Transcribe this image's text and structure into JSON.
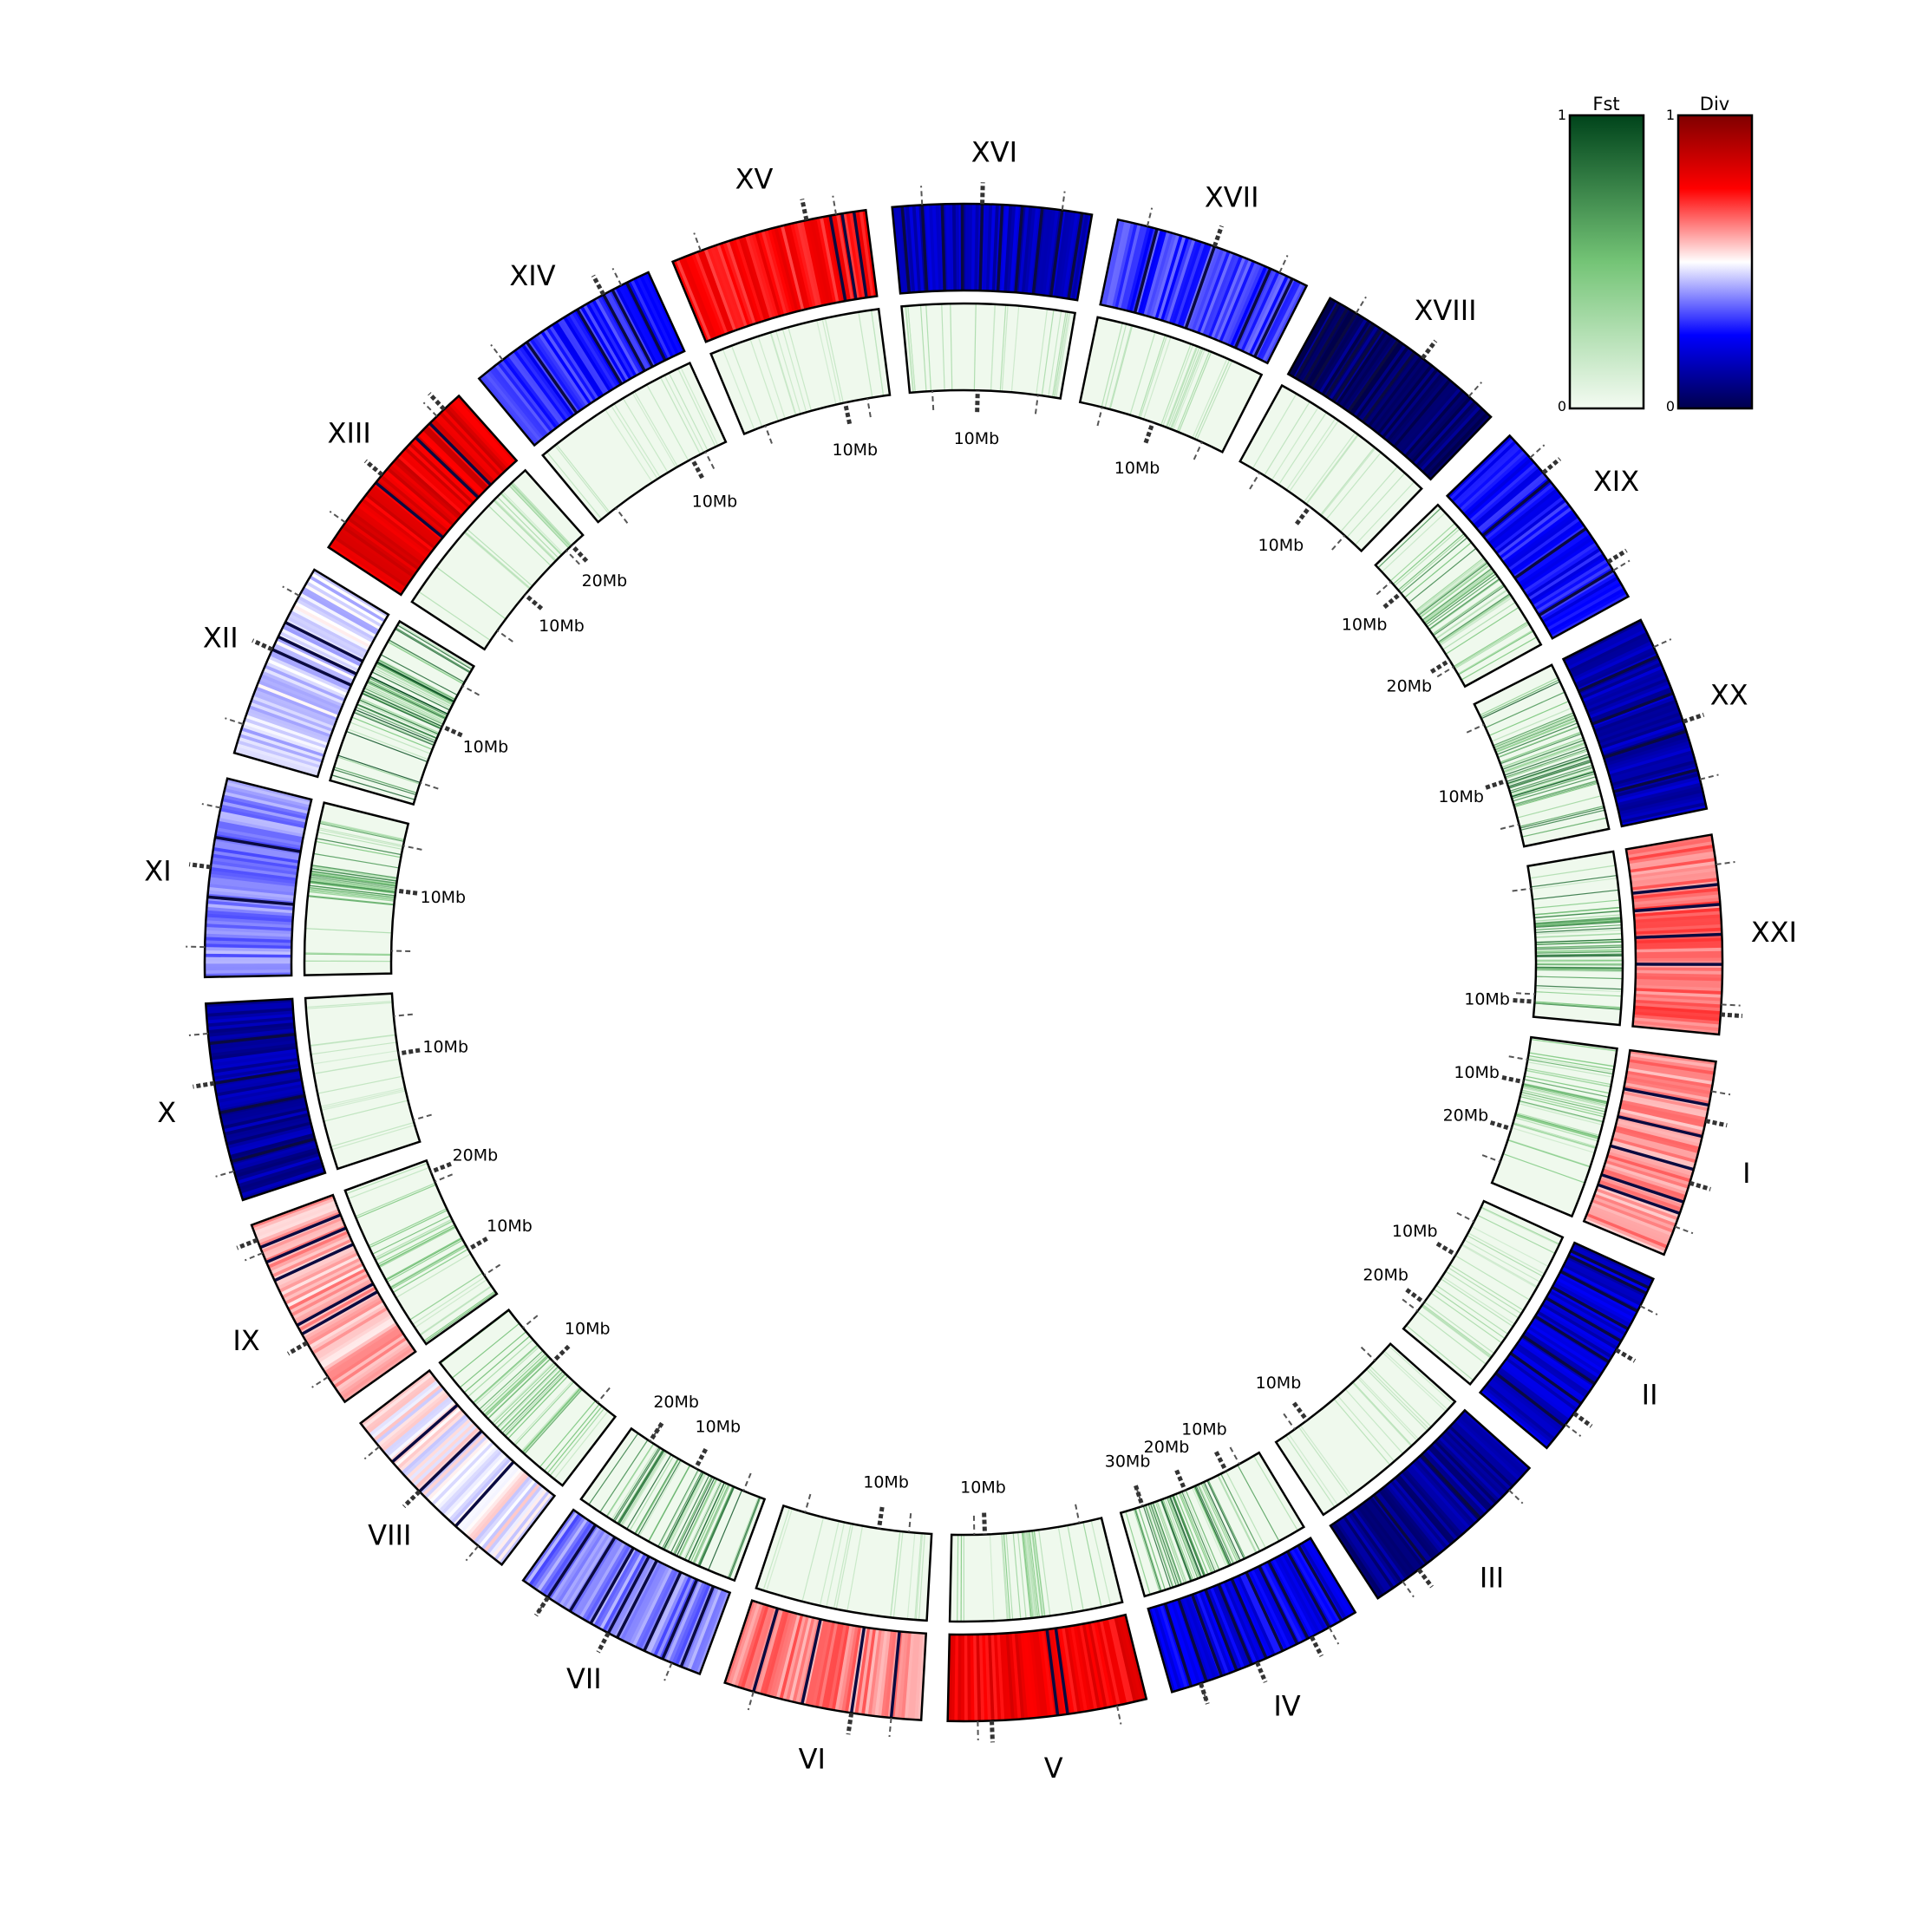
{
  "chart_data": {
    "type": "circos",
    "tracks": [
      {
        "name": "Div",
        "position": "outer",
        "colormap": "seismic",
        "range": [
          0,
          1
        ]
      },
      {
        "name": "Fst",
        "position": "inner",
        "colormap": "Greens",
        "range": [
          0,
          1
        ]
      }
    ],
    "legend": {
      "placement": "top-right",
      "colorbars": [
        {
          "title": "Fst",
          "max_label": "1",
          "min_label": "0",
          "low_color": "#f4fbf2",
          "mid_color": "#74c476",
          "high_color": "#00441b"
        },
        {
          "title": "Div",
          "max_label": "1",
          "min_label": "0",
          "low_color": "#00004c",
          "mid_color": "#ffffff",
          "high_color": "#800000"
        }
      ]
    },
    "chromosomes": [
      {
        "name": "I",
        "div": 0.6,
        "fst_density": 0.35,
        "fst_hot": [
          0.1,
          0.6
        ],
        "dark_lines": [
          0.22,
          0.38,
          0.55,
          0.72,
          0.78
        ],
        "tick_labels": [
          {
            "pos": 0.3,
            "text": "10Mb"
          },
          {
            "pos": 0.62,
            "text": "20Mb"
          }
        ]
      },
      {
        "name": "II",
        "div": 0.18,
        "fst_density": 0.15,
        "fst_hot": [],
        "dark_lines": [
          0.05,
          0.08,
          0.18,
          0.28,
          0.35,
          0.47,
          0.6,
          0.72,
          0.86
        ],
        "tick_labels": [
          {
            "pos": 0.4,
            "text": "10Mb"
          },
          {
            "pos": 0.78,
            "text": "20Mb"
          }
        ]
      },
      {
        "name": "III",
        "div": 0.1,
        "fst_density": 0.08,
        "fst_hot": [],
        "dark_lines": [
          0.35,
          0.7
        ],
        "tick_labels": [
          {
            "pos": 0.75,
            "text": "10Mb"
          }
        ]
      },
      {
        "name": "IV",
        "div": 0.22,
        "fst_density": 0.55,
        "fst_hot": [
          0.2,
          0.85
        ],
        "dark_lines": [
          0.08,
          0.15,
          0.27,
          0.33,
          0.41,
          0.5,
          0.58,
          0.66,
          0.74,
          0.82,
          0.9
        ],
        "tick_labels": [
          {
            "pos": 0.25,
            "text": "10Mb"
          },
          {
            "pos": 0.55,
            "text": "20Mb"
          },
          {
            "pos": 0.85,
            "text": "30Mb"
          }
        ]
      },
      {
        "name": "V",
        "div": 0.78,
        "fst_density": 0.25,
        "fst_hot": [
          0.45,
          0.55
        ],
        "dark_lines": [
          0.4,
          0.45
        ],
        "tick_labels": [
          {
            "pos": 0.78,
            "text": "10Mb"
          }
        ]
      },
      {
        "name": "VI",
        "div": 0.62,
        "fst_density": 0.06,
        "fst_hot": [],
        "dark_lines": [
          0.15,
          0.35,
          0.6,
          0.85
        ],
        "tick_labels": [
          {
            "pos": 0.35,
            "text": "10Mb"
          }
        ]
      },
      {
        "name": "VII",
        "div": 0.38,
        "fst_density": 0.6,
        "fst_hot": [
          0.2,
          0.8
        ],
        "dark_lines": [
          0.1,
          0.2,
          0.3,
          0.45,
          0.5,
          0.6,
          0.72,
          0.85
        ],
        "tick_labels": [
          {
            "pos": 0.5,
            "text": "10Mb"
          },
          {
            "pos": 0.85,
            "text": "20Mb"
          }
        ]
      },
      {
        "name": "VIII",
        "div": 0.5,
        "fst_density": 0.35,
        "fst_hot": [
          0.4,
          0.7
        ],
        "dark_lines": [
          0.3,
          0.55,
          0.75
        ],
        "tick_labels": [
          {
            "pos": 0.55,
            "text": "10Mb"
          }
        ]
      },
      {
        "name": "IX",
        "div": 0.58,
        "fst_density": 0.3,
        "fst_hot": [
          0.3,
          0.6
        ],
        "dark_lines": [
          0.4,
          0.45,
          0.7,
          0.8,
          0.88
        ],
        "tick_labels": [
          {
            "pos": 0.35,
            "text": "10Mb"
          },
          {
            "pos": 0.92,
            "text": "20Mb"
          }
        ]
      },
      {
        "name": "X",
        "div": 0.12,
        "fst_density": 0.06,
        "fst_hot": [],
        "dark_lines": [
          0.2,
          0.45,
          0.6,
          0.8
        ],
        "tick_labels": [
          {
            "pos": 0.6,
            "text": "10Mb"
          }
        ]
      },
      {
        "name": "XI",
        "div": 0.38,
        "fst_density": 0.45,
        "fst_hot": [
          0.45,
          0.65
        ],
        "dark_lines": [
          0.4,
          0.7
        ],
        "tick_labels": [
          {
            "pos": 0.55,
            "text": "10Mb"
          }
        ]
      },
      {
        "name": "XII",
        "div": 0.46,
        "fst_density": 0.65,
        "fst_hot": [
          0.35,
          0.75
        ],
        "dark_lines": [
          0.55,
          0.62,
          0.7
        ],
        "tick_labels": [
          {
            "pos": 0.55,
            "text": "10Mb"
          }
        ]
      },
      {
        "name": "XIII",
        "div": 0.8,
        "fst_density": 0.15,
        "fst_hot": [
          0.7,
          0.9
        ],
        "dark_lines": [
          0.4,
          0.7,
          0.8
        ],
        "tick_labels": [
          {
            "pos": 0.45,
            "text": "10Mb"
          },
          {
            "pos": 0.9,
            "text": "20Mb"
          }
        ]
      },
      {
        "name": "XIV",
        "div": 0.28,
        "fst_density": 0.06,
        "fst_hot": [],
        "dark_lines": [
          0.3,
          0.6,
          0.75,
          0.8,
          0.88
        ],
        "tick_labels": [
          {
            "pos": 0.75,
            "text": "10Mb"
          }
        ]
      },
      {
        "name": "XV",
        "div": 0.74,
        "fst_density": 0.05,
        "fst_hot": [],
        "dark_lines": [
          0.82,
          0.88,
          0.94
        ],
        "tick_labels": [
          {
            "pos": 0.7,
            "text": "10Mb"
          }
        ]
      },
      {
        "name": "XVI",
        "div": 0.16,
        "fst_density": 0.12,
        "fst_hot": [],
        "dark_lines": [
          0.05,
          0.15,
          0.25,
          0.35,
          0.45,
          0.55,
          0.65,
          0.75,
          0.85,
          0.95
        ],
        "tick_labels": [
          {
            "pos": 0.45,
            "text": "10Mb"
          }
        ]
      },
      {
        "name": "XVII",
        "div": 0.3,
        "fst_density": 0.12,
        "fst_hot": [],
        "dark_lines": [
          0.2,
          0.5,
          0.8,
          0.92
        ],
        "tick_labels": [
          {
            "pos": 0.5,
            "text": "10Mb"
          }
        ]
      },
      {
        "name": "XVIII",
        "div": 0.05,
        "fst_density": 0.06,
        "fst_hot": [],
        "dark_lines": [
          0.05,
          0.1,
          0.15,
          0.25,
          0.3,
          0.4,
          0.5
        ],
        "tick_labels": [
          {
            "pos": 0.55,
            "text": "10Mb"
          }
        ]
      },
      {
        "name": "XIX",
        "div": 0.26,
        "fst_density": 0.45,
        "fst_hot": [
          0.4,
          0.7
        ],
        "dark_lines": [
          0.3,
          0.6,
          0.85
        ],
        "tick_labels": [
          {
            "pos": 0.25,
            "text": "10Mb"
          },
          {
            "pos": 0.8,
            "text": "20Mb"
          }
        ]
      },
      {
        "name": "XX",
        "div": 0.14,
        "fst_density": 0.55,
        "fst_hot": [
          0.3,
          0.75
        ],
        "dark_lines": [
          0.2,
          0.4,
          0.6,
          0.8
        ],
        "tick_labels": [
          {
            "pos": 0.55,
            "text": "10Mb"
          }
        ]
      },
      {
        "name": "XXI",
        "div": 0.64,
        "fst_density": 0.55,
        "fst_hot": [
          0.3,
          0.7
        ],
        "dark_lines": [
          0.25,
          0.35,
          0.5,
          0.65
        ],
        "tick_labels": [
          {
            "pos": 0.9,
            "text": "10Mb"
          }
        ]
      }
    ]
  }
}
